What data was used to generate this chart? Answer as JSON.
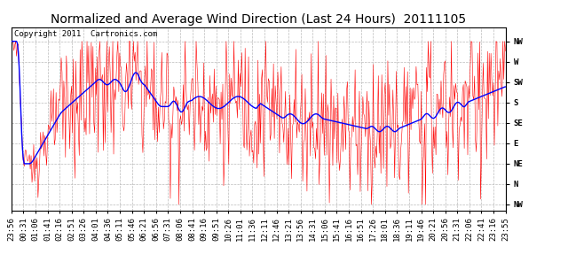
{
  "title": "Normalized and Average Wind Direction (Last 24 Hours)  20111105",
  "copyright": "Copyright 2011  Cartronics.com",
  "background_color": "#ffffff",
  "plot_bg_color": "#ffffff",
  "grid_color": "#bbbbbb",
  "red_color": "#ff0000",
  "blue_color": "#0000ff",
  "x_tick_labels": [
    "23:56",
    "00:31",
    "01:06",
    "01:41",
    "02:16",
    "02:51",
    "03:26",
    "04:01",
    "04:36",
    "05:11",
    "05:46",
    "06:21",
    "06:56",
    "07:31",
    "08:06",
    "08:41",
    "09:16",
    "09:51",
    "10:26",
    "11:01",
    "11:36",
    "12:11",
    "12:46",
    "13:21",
    "13:56",
    "14:31",
    "15:06",
    "15:41",
    "16:16",
    "16:51",
    "17:26",
    "18:01",
    "18:36",
    "19:11",
    "19:46",
    "20:21",
    "20:56",
    "21:31",
    "22:06",
    "22:41",
    "23:16",
    "23:55"
  ],
  "y_tick_labels": [
    "NW",
    "W",
    "SW",
    "S",
    "SE",
    "E",
    "NE",
    "N",
    "NW"
  ],
  "y_tick_positions": [
    8,
    7,
    6,
    5,
    4,
    3,
    2,
    1,
    0
  ],
  "ylim": [
    -0.3,
    8.7
  ],
  "title_fontsize": 10,
  "axis_fontsize": 6.5,
  "copyright_fontsize": 6.5
}
